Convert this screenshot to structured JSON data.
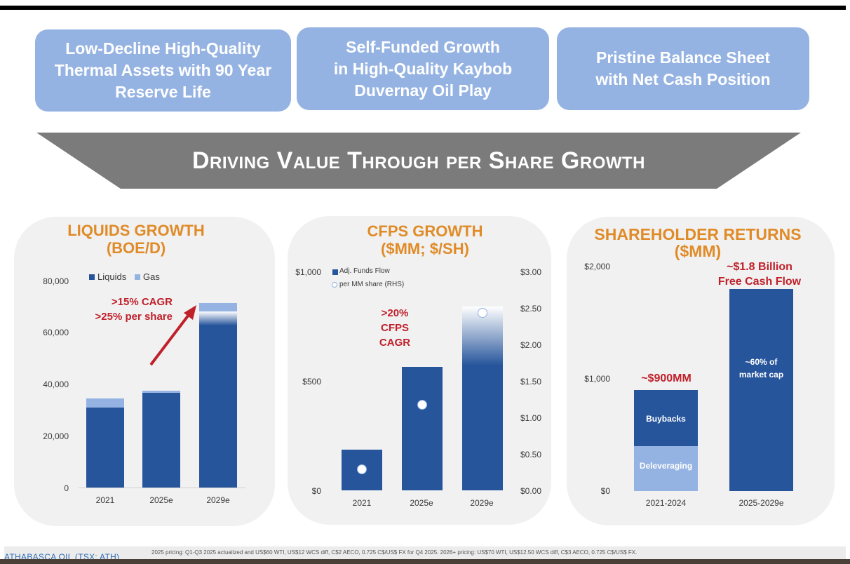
{
  "pillars": [
    "Low-Decline High-Quality\nThermal Assets with 90 Year\nReserve Life",
    "Self-Funded Growth\nin High-Quality Kaybob\nDuvernay Oil Play",
    "Pristine Balance Sheet\nwith Net Cash Position"
  ],
  "banner": "Driving Value Through per Share Growth",
  "colors": {
    "dark_blue": "#26559c",
    "light_blue": "#95b3e2",
    "orange": "#e08b28",
    "red": "#c0202a",
    "banner_gray": "#7b7b7b"
  },
  "chart_data": [
    {
      "type": "bar",
      "stacked": true,
      "title": "LIQUIDS GROWTH\n(BOE/D)",
      "categories": [
        "2021",
        "2025e",
        "2029e"
      ],
      "series": [
        {
          "name": "Liquids",
          "values": [
            31000,
            36500,
            68000
          ]
        },
        {
          "name": "Gas",
          "values": [
            3500,
            800,
            3200
          ]
        }
      ],
      "ylim": [
        0,
        80000
      ],
      "yticks": [
        "80,000",
        "60,000",
        "40,000",
        "20,000",
        "0"
      ],
      "annotation": ">15% CAGR\n>25% per share"
    },
    {
      "type": "bar",
      "title": "CFPS GROWTH\n($MM; $/SH)",
      "categories": [
        "2021",
        "2025e",
        "2029e"
      ],
      "series": [
        {
          "name": "Adj. Funds Flow",
          "values": [
            185,
            565,
            840
          ]
        },
        {
          "name": "per MM share (RHS)",
          "values": [
            0.29,
            1.17,
            2.43
          ],
          "axis": "right"
        }
      ],
      "ylim": [
        0,
        1000
      ],
      "y2lim": [
        0,
        3.0
      ],
      "yticks_left": [
        "$1,000",
        "$500",
        "$0"
      ],
      "yticks_right": [
        "$3.00",
        "$2.50",
        "$2.00",
        "$1.50",
        "$1.00",
        "$0.50",
        "$0.00"
      ],
      "annotation": ">20% CFPS\nCAGR"
    },
    {
      "type": "bar",
      "stacked": true,
      "title": "SHAREHOLDER RETURNS\n($MM)",
      "categories": [
        "2021-2024",
        "2025-2029e"
      ],
      "series": [
        {
          "name": "Deleveraging",
          "values": [
            400,
            0
          ]
        },
        {
          "name": "Buybacks",
          "values": [
            500,
            0
          ]
        },
        {
          "name": "Free Cash Flow",
          "values": [
            0,
            1800
          ]
        }
      ],
      "ylim": [
        0,
        2000
      ],
      "yticks": [
        "$2,000",
        "$1,000",
        "$0"
      ],
      "bar_labels": {
        "deleveraging": "Deleveraging",
        "buybacks": "Buybacks",
        "fcf": "~60% of\nmarket cap"
      },
      "totals": [
        "~$900MM",
        "~$1.8 Billion\nFree Cash Flow"
      ]
    }
  ],
  "footer": {
    "brand": "ATHABASCA OIL (TSX: ATH)",
    "note": "2025 pricing: Q1-Q3 2025 actualized and US$60 WTI, US$12 WCS diff, C$2 AECO, 0.725 C$/US$ FX for Q4 2025. 2026+ pricing: US$70 WTI, US$12.50 WCS diff, C$3 AECO, 0.725 C$/US$ FX."
  }
}
